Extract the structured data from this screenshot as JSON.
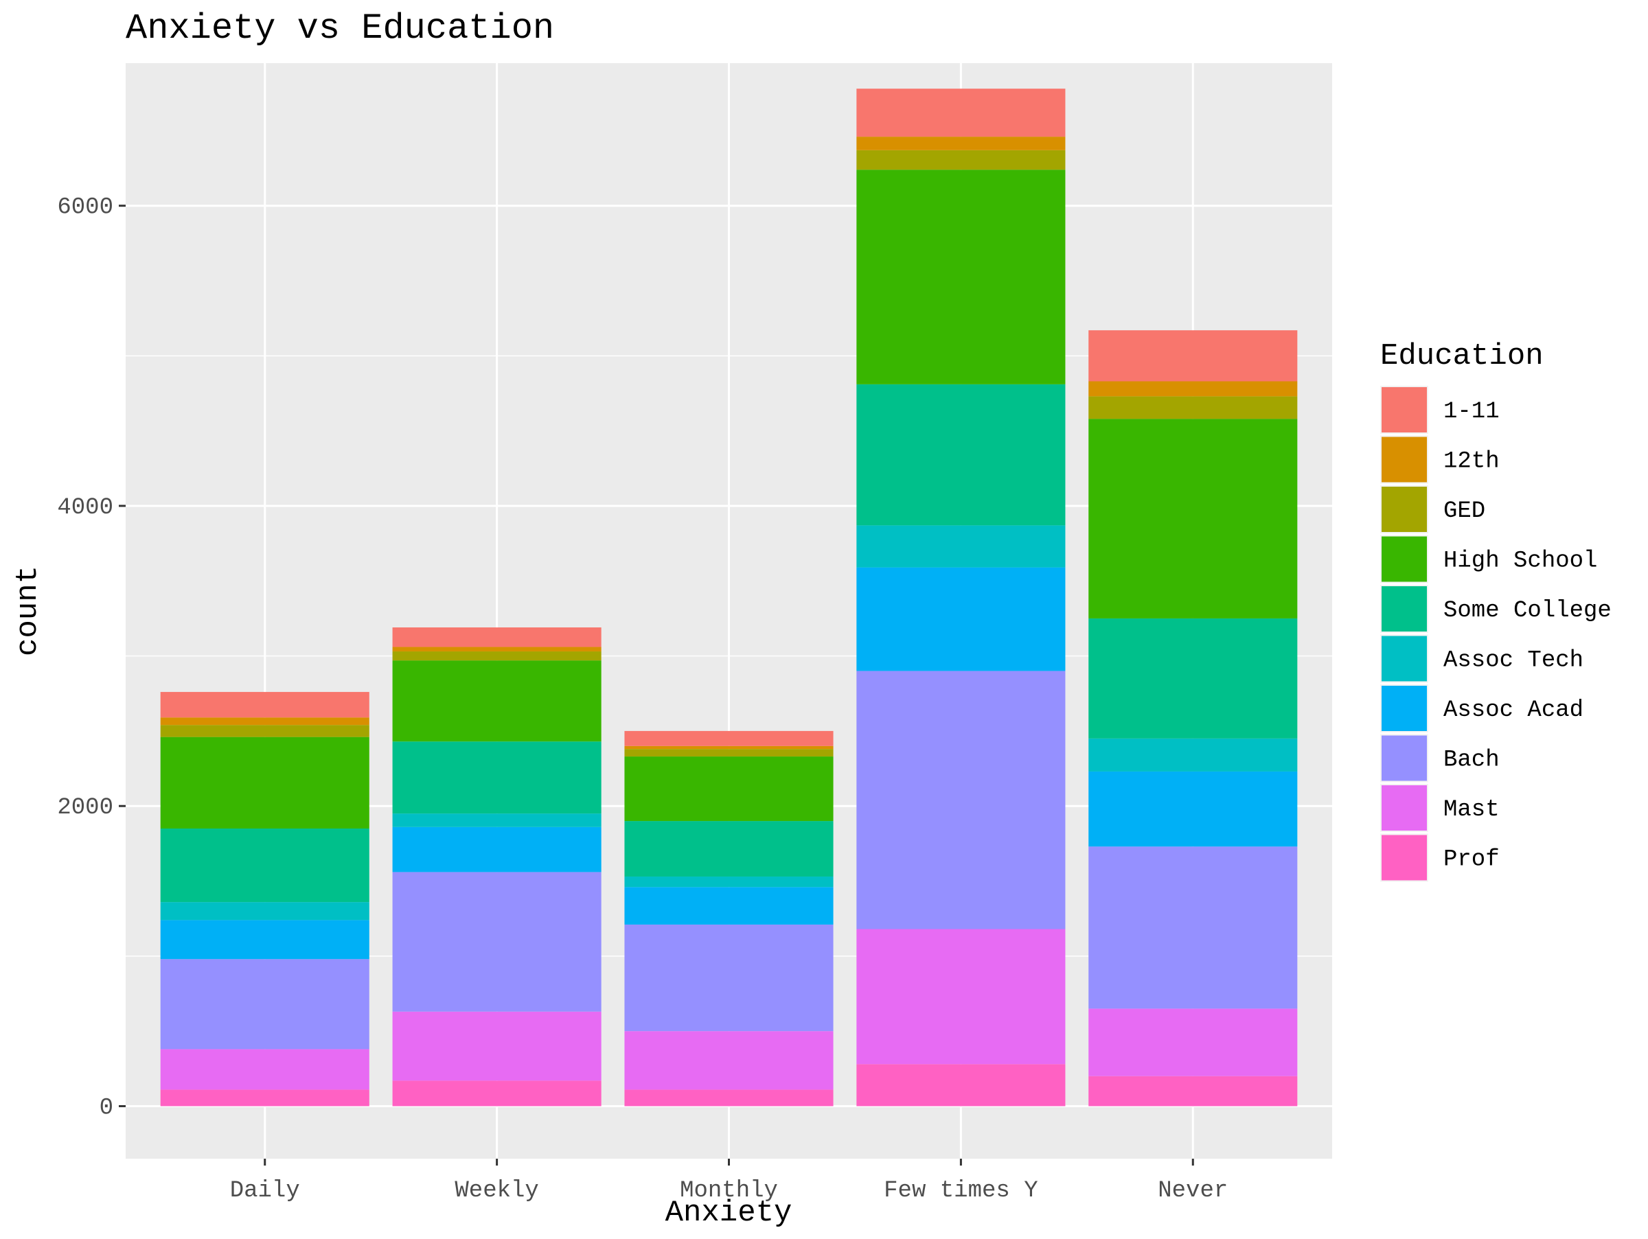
{
  "chart_data": {
    "type": "bar",
    "stacked": true,
    "title": "Anxiety vs Education",
    "xlabel": "Anxiety",
    "ylabel": "count",
    "categories": [
      "Daily",
      "Weekly",
      "Monthly",
      "Few times Y",
      "Never"
    ],
    "ylim": [
      -350,
      6950
    ],
    "y_ticks": [
      0,
      2000,
      4000,
      6000
    ],
    "y_tick_labels": [
      "0",
      "2000",
      "4000",
      "6000"
    ],
    "grid": true,
    "legend": {
      "title": "Education",
      "position": "right"
    },
    "series": [
      {
        "name": "Prof",
        "color": "#FF61C3",
        "values": [
          110,
          170,
          110,
          280,
          200
        ]
      },
      {
        "name": "Mast",
        "color": "#E76BF3",
        "values": [
          270,
          460,
          390,
          900,
          450
        ]
      },
      {
        "name": "Bach",
        "color": "#9590FF",
        "values": [
          600,
          930,
          710,
          1720,
          1080
        ]
      },
      {
        "name": "Assoc Acad",
        "color": "#00B0F6",
        "values": [
          260,
          300,
          250,
          690,
          500
        ]
      },
      {
        "name": "Assoc Tech",
        "color": "#00BFC4",
        "values": [
          120,
          90,
          70,
          280,
          220
        ]
      },
      {
        "name": "Some College",
        "color": "#00C08B",
        "values": [
          490,
          480,
          370,
          940,
          800
        ]
      },
      {
        "name": "High School",
        "color": "#39B600",
        "values": [
          610,
          540,
          430,
          1430,
          1330
        ]
      },
      {
        "name": "GED",
        "color": "#A3A500",
        "values": [
          80,
          60,
          50,
          130,
          150
        ]
      },
      {
        "name": "12th",
        "color": "#D89000",
        "values": [
          50,
          30,
          20,
          90,
          100
        ]
      },
      {
        "name": "1-11",
        "color": "#F8766D",
        "values": [
          170,
          130,
          100,
          320,
          340
        ]
      }
    ],
    "legend_order": [
      "1-11",
      "12th",
      "GED",
      "High School",
      "Some College",
      "Assoc Tech",
      "Assoc Acad",
      "Bach",
      "Mast",
      "Prof"
    ]
  }
}
